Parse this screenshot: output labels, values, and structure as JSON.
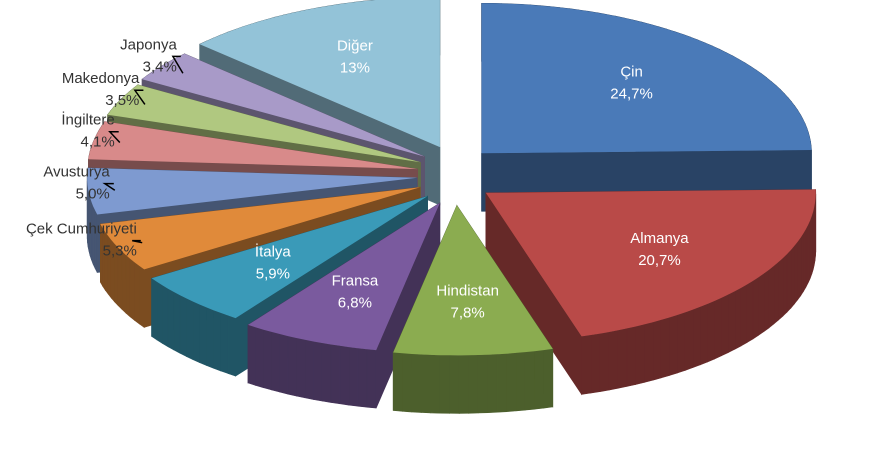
{
  "chart_data": {
    "type": "pie",
    "categories": [
      "Çin",
      "Almanya",
      "Hindistan",
      "Fransa",
      "İtalya",
      "Çek Cumhuriyeti",
      "Avusturya",
      "İngiltere",
      "Makedonya",
      "Japonya",
      "Diğer"
    ],
    "values": [
      24.7,
      20.7,
      7.8,
      6.8,
      5.9,
      5.3,
      5.0,
      4.1,
      3.5,
      3.4,
      13
    ],
    "value_labels": [
      "24,7%",
      "20,7%",
      "7,8%",
      "6,8%",
      "5,9%",
      "5,3%",
      "5,0%",
      "4,1%",
      "3,5%",
      "3,4%",
      "13%"
    ],
    "colors": [
      "#4a7ab8",
      "#b94a48",
      "#8bac50",
      "#7a5a9e",
      "#3a9ab8",
      "#e08a3a",
      "#7e9ad0",
      "#d88a8a",
      "#b0c880",
      "#a89ac8",
      "#93c3d8"
    ]
  }
}
